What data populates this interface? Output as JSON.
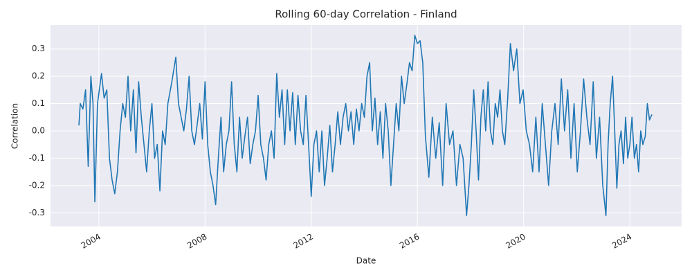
{
  "chart_data": {
    "type": "line",
    "title": "Rolling 60-day Correlation - Finland",
    "xlabel": "Date",
    "ylabel": "Correlation",
    "color": "#1f77b4",
    "grid": true,
    "xlim": [
      2002.18,
      2025.95
    ],
    "xticks": [
      2004,
      2008,
      2012,
      2016,
      2020,
      2024
    ],
    "ylim": [
      -0.35,
      0.388
    ],
    "yticks": [
      -0.3,
      -0.2,
      -0.1,
      {
        "value": 0,
        "label": "0.0"
      },
      0.1,
      0.2,
      0.3
    ],
    "x": [
      2003.25,
      2003.3,
      2003.4,
      2003.5,
      2003.6,
      2003.7,
      2003.78,
      2003.85,
      2003.95,
      2004.1,
      2004.2,
      2004.3,
      2004.4,
      2004.5,
      2004.6,
      2004.7,
      2004.8,
      2004.9,
      2005.0,
      2005.1,
      2005.2,
      2005.3,
      2005.4,
      2005.5,
      2005.6,
      2005.7,
      2005.8,
      2005.9,
      2006.0,
      2006.1,
      2006.2,
      2006.3,
      2006.4,
      2006.5,
      2006.6,
      2006.75,
      2006.9,
      2007.0,
      2007.1,
      2007.2,
      2007.3,
      2007.4,
      2007.5,
      2007.6,
      2007.7,
      2007.8,
      2007.9,
      2008.0,
      2008.1,
      2008.2,
      2008.3,
      2008.4,
      2008.5,
      2008.6,
      2008.7,
      2008.8,
      2008.9,
      2009.0,
      2009.1,
      2009.2,
      2009.3,
      2009.4,
      2009.5,
      2009.6,
      2009.7,
      2009.8,
      2009.9,
      2010.0,
      2010.1,
      2010.2,
      2010.3,
      2010.4,
      2010.5,
      2010.6,
      2010.7,
      2010.8,
      2010.9,
      2011.0,
      2011.1,
      2011.2,
      2011.3,
      2011.4,
      2011.5,
      2011.6,
      2011.7,
      2011.8,
      2011.9,
      2012.0,
      2012.1,
      2012.2,
      2012.3,
      2012.4,
      2012.5,
      2012.6,
      2012.7,
      2012.8,
      2012.9,
      2013.0,
      2013.1,
      2013.2,
      2013.3,
      2013.4,
      2013.5,
      2013.6,
      2013.7,
      2013.8,
      2013.9,
      2014.0,
      2014.1,
      2014.2,
      2014.3,
      2014.4,
      2014.5,
      2014.6,
      2014.7,
      2014.8,
      2014.9,
      2015.0,
      2015.1,
      2015.2,
      2015.3,
      2015.4,
      2015.5,
      2015.6,
      2015.7,
      2015.8,
      2015.9,
      2016.0,
      2016.1,
      2016.2,
      2016.3,
      2016.43,
      2016.56,
      2016.69,
      2016.82,
      2016.95,
      2017.08,
      2017.21,
      2017.34,
      2017.47,
      2017.6,
      2017.72,
      2017.85,
      2017.94,
      2018.03,
      2018.12,
      2018.21,
      2018.3,
      2018.39,
      2018.48,
      2018.57,
      2018.66,
      2018.75,
      2018.84,
      2018.93,
      2019.02,
      2019.11,
      2019.2,
      2019.29,
      2019.4,
      2019.5,
      2019.62,
      2019.74,
      2019.86,
      2019.98,
      2020.1,
      2020.22,
      2020.34,
      2020.46,
      2020.58,
      2020.7,
      2020.82,
      2020.94,
      2021.06,
      2021.18,
      2021.3,
      2021.42,
      2021.54,
      2021.66,
      2021.78,
      2021.9,
      2022.02,
      2022.14,
      2022.26,
      2022.38,
      2022.5,
      2022.62,
      2022.74,
      2022.86,
      2022.98,
      2023.1,
      2023.18,
      2023.26,
      2023.35,
      2023.43,
      2023.51,
      2023.59,
      2023.67,
      2023.76,
      2023.84,
      2023.92,
      2024.0,
      2024.08,
      2024.17,
      2024.25,
      2024.33,
      2024.41,
      2024.49,
      2024.58,
      2024.66,
      2024.74,
      2024.83
    ],
    "values": [
      0.02,
      0.1,
      0.08,
      0.15,
      -0.13,
      0.2,
      0.1,
      -0.26,
      0.1,
      0.21,
      0.12,
      0.15,
      -0.1,
      -0.18,
      -0.23,
      -0.15,
      0.0,
      0.1,
      0.05,
      0.2,
      0.0,
      0.15,
      -0.08,
      0.18,
      0.05,
      -0.05,
      -0.15,
      0.0,
      0.1,
      -0.1,
      -0.05,
      -0.22,
      0.0,
      -0.05,
      0.1,
      0.18,
      0.27,
      0.1,
      0.05,
      0.0,
      0.08,
      0.2,
      0.0,
      -0.05,
      0.02,
      0.1,
      -0.03,
      0.18,
      -0.05,
      -0.15,
      -0.2,
      -0.27,
      -0.1,
      0.05,
      -0.15,
      -0.05,
      0.0,
      0.18,
      -0.05,
      -0.15,
      0.05,
      -0.1,
      -0.02,
      0.05,
      -0.12,
      -0.05,
      0.0,
      0.13,
      -0.05,
      -0.1,
      -0.18,
      -0.05,
      0.0,
      -0.1,
      0.21,
      0.05,
      0.15,
      -0.05,
      0.15,
      0.0,
      0.14,
      -0.05,
      0.13,
      0.0,
      -0.05,
      0.13,
      -0.05,
      -0.24,
      -0.05,
      0.0,
      -0.15,
      0.0,
      -0.2,
      -0.1,
      0.02,
      -0.15,
      -0.05,
      0.07,
      -0.05,
      0.05,
      0.1,
      0.0,
      0.07,
      -0.05,
      0.08,
      0.0,
      0.1,
      0.05,
      0.2,
      0.25,
      0.0,
      0.12,
      -0.05,
      0.07,
      -0.1,
      0.1,
      0.0,
      -0.2,
      -0.05,
      0.1,
      0.0,
      0.2,
      0.1,
      0.17,
      0.25,
      0.22,
      0.35,
      0.32,
      0.33,
      0.25,
      -0.02,
      -0.17,
      0.05,
      -0.1,
      0.03,
      -0.2,
      0.1,
      -0.05,
      0.0,
      -0.2,
      -0.05,
      -0.1,
      -0.31,
      -0.2,
      -0.05,
      0.15,
      0.0,
      -0.18,
      0.05,
      0.15,
      0.0,
      0.18,
      0.0,
      -0.05,
      0.1,
      0.05,
      0.15,
      0.0,
      -0.05,
      0.12,
      0.32,
      0.22,
      0.3,
      0.1,
      0.15,
      0.0,
      -0.05,
      -0.15,
      0.05,
      -0.15,
      0.1,
      -0.05,
      -0.2,
      0.0,
      0.1,
      -0.05,
      0.19,
      0.0,
      0.15,
      -0.1,
      0.1,
      -0.15,
      0.0,
      0.19,
      0.05,
      -0.05,
      0.18,
      -0.1,
      0.05,
      -0.2,
      -0.31,
      -0.05,
      0.1,
      0.2,
      0.0,
      -0.21,
      -0.05,
      0.0,
      -0.12,
      0.05,
      -0.1,
      -0.05,
      0.05,
      -0.1,
      -0.05,
      -0.15,
      0.0,
      -0.05,
      -0.02,
      0.1,
      0.04,
      0.06
    ]
  }
}
